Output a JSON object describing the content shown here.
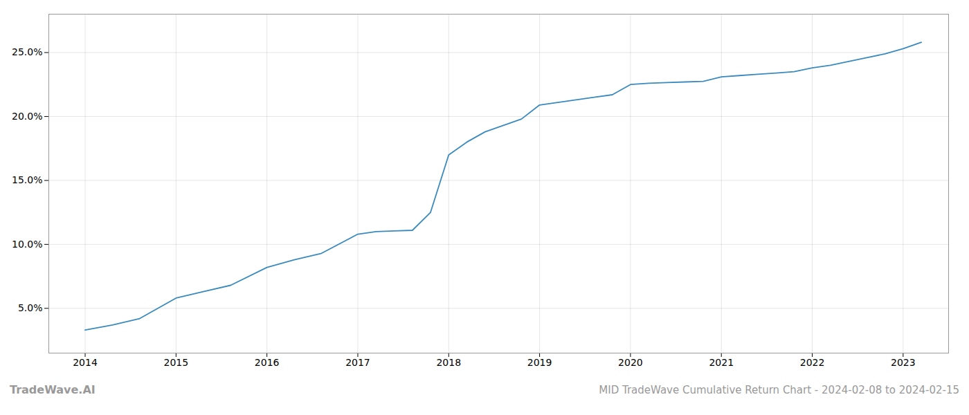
{
  "chart_data": {
    "type": "line",
    "title": "MID TradeWave Cumulative Return Chart - 2024-02-08 to 2024-02-15",
    "annotations": [
      "TradeWave.AI"
    ],
    "x": [
      2014.0,
      2014.3,
      2014.6,
      2015.0,
      2015.3,
      2015.6,
      2016.0,
      2016.3,
      2016.6,
      2017.0,
      2017.2,
      2017.4,
      2017.6,
      2017.8,
      2018.0,
      2018.2,
      2018.4,
      2018.6,
      2018.8,
      2019.0,
      2019.2,
      2019.4,
      2019.6,
      2019.8,
      2020.0,
      2020.2,
      2020.4,
      2020.6,
      2020.8,
      2021.0,
      2021.2,
      2021.4,
      2021.6,
      2021.8,
      2022.0,
      2022.2,
      2022.4,
      2022.6,
      2022.8,
      2023.0,
      2023.2
    ],
    "values": [
      3.3,
      3.7,
      4.2,
      5.8,
      6.3,
      6.8,
      8.2,
      8.8,
      9.3,
      10.8,
      11.0,
      11.05,
      11.1,
      12.5,
      17.0,
      18.0,
      18.8,
      19.3,
      19.8,
      20.9,
      21.1,
      21.3,
      21.5,
      21.7,
      22.5,
      22.6,
      22.65,
      22.7,
      22.75,
      23.1,
      23.2,
      23.3,
      23.4,
      23.5,
      23.8,
      24.0,
      24.3,
      24.6,
      24.9,
      25.3,
      25.8
    ],
    "color": "#3a8abf",
    "xlim": [
      2013.6,
      2023.5
    ],
    "xticks": [
      2014,
      2015,
      2016,
      2017,
      2018,
      2019,
      2020,
      2021,
      2022,
      2023
    ],
    "ylim": [
      1.5,
      28.0
    ],
    "yticks": [
      {
        "value": 5.0,
        "label": "5.0%"
      },
      {
        "value": 10.0,
        "label": "10.0%"
      },
      {
        "value": 15.0,
        "label": "15.0%"
      },
      {
        "value": 20.0,
        "label": "20.0%"
      },
      {
        "value": 25.0,
        "label": "25.0%"
      }
    ],
    "grid": true
  }
}
